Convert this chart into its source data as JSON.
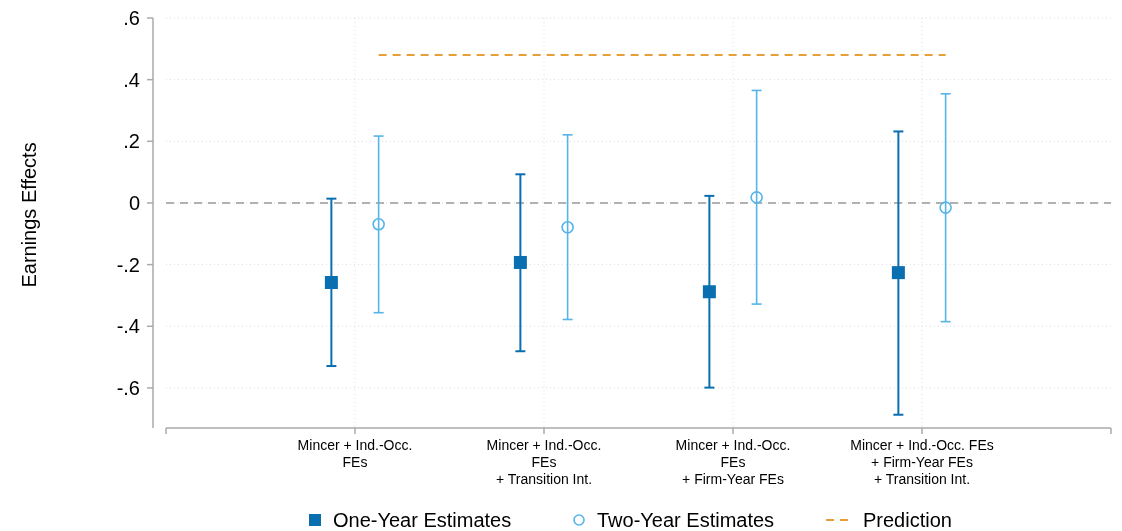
{
  "chart_data": {
    "type": "scatter",
    "ylabel": "Earnings Effects",
    "categories": [
      "Mincer + Ind.-Occ.\nFEs",
      "Mincer + Ind.-Occ.\nFEs\n+ Transition Int.",
      "Mincer + Ind.-Occ.\nFEs\n+ Firm-Year FEs",
      "Mincer + Ind.-Occ. FEs\n+ Firm-Year FEs\n+ Transition Int."
    ],
    "series": [
      {
        "name": "One-Year Estimates",
        "marker": "square",
        "color": "#0a6fb0",
        "values": [
          -0.258,
          -0.193,
          -0.288,
          -0.226
        ],
        "errors": [
          [
            -0.529,
            0.014
          ],
          [
            -0.481,
            0.093
          ],
          [
            -0.599,
            0.023
          ],
          [
            -0.687,
            0.232
          ]
        ]
      },
      {
        "name": "Two-Year Estimates",
        "marker": "circle",
        "color": "#56b4e9",
        "values": [
          -0.069,
          -0.079,
          0.018,
          -0.015
        ],
        "errors": [
          [
            -0.356,
            0.217
          ],
          [
            -0.378,
            0.221
          ],
          [
            -0.328,
            0.365
          ],
          [
            -0.385,
            0.354
          ]
        ]
      },
      {
        "name": "Prediction",
        "type": "line",
        "line_style": "dashed",
        "color": "#e69f39",
        "values": [
          0.48,
          0.48,
          0.48,
          0.48
        ]
      }
    ],
    "ylim": [
      -0.73,
      0.6
    ],
    "yticks": [
      {
        "value": -0.6,
        "label": "-.6"
      },
      {
        "value": -0.4,
        "label": "-.4"
      },
      {
        "value": -0.2,
        "label": "-.2"
      },
      0,
      {
        "value": 0.2,
        "label": ".2"
      },
      {
        "value": 0.4,
        "label": ".4"
      },
      {
        "value": 0.6,
        "label": ".6"
      }
    ],
    "ref_lines": [
      {
        "axis": "y",
        "value": 0,
        "color": "#999999",
        "line_style": "dashed"
      }
    ],
    "grid": true,
    "legend": "bottom"
  }
}
